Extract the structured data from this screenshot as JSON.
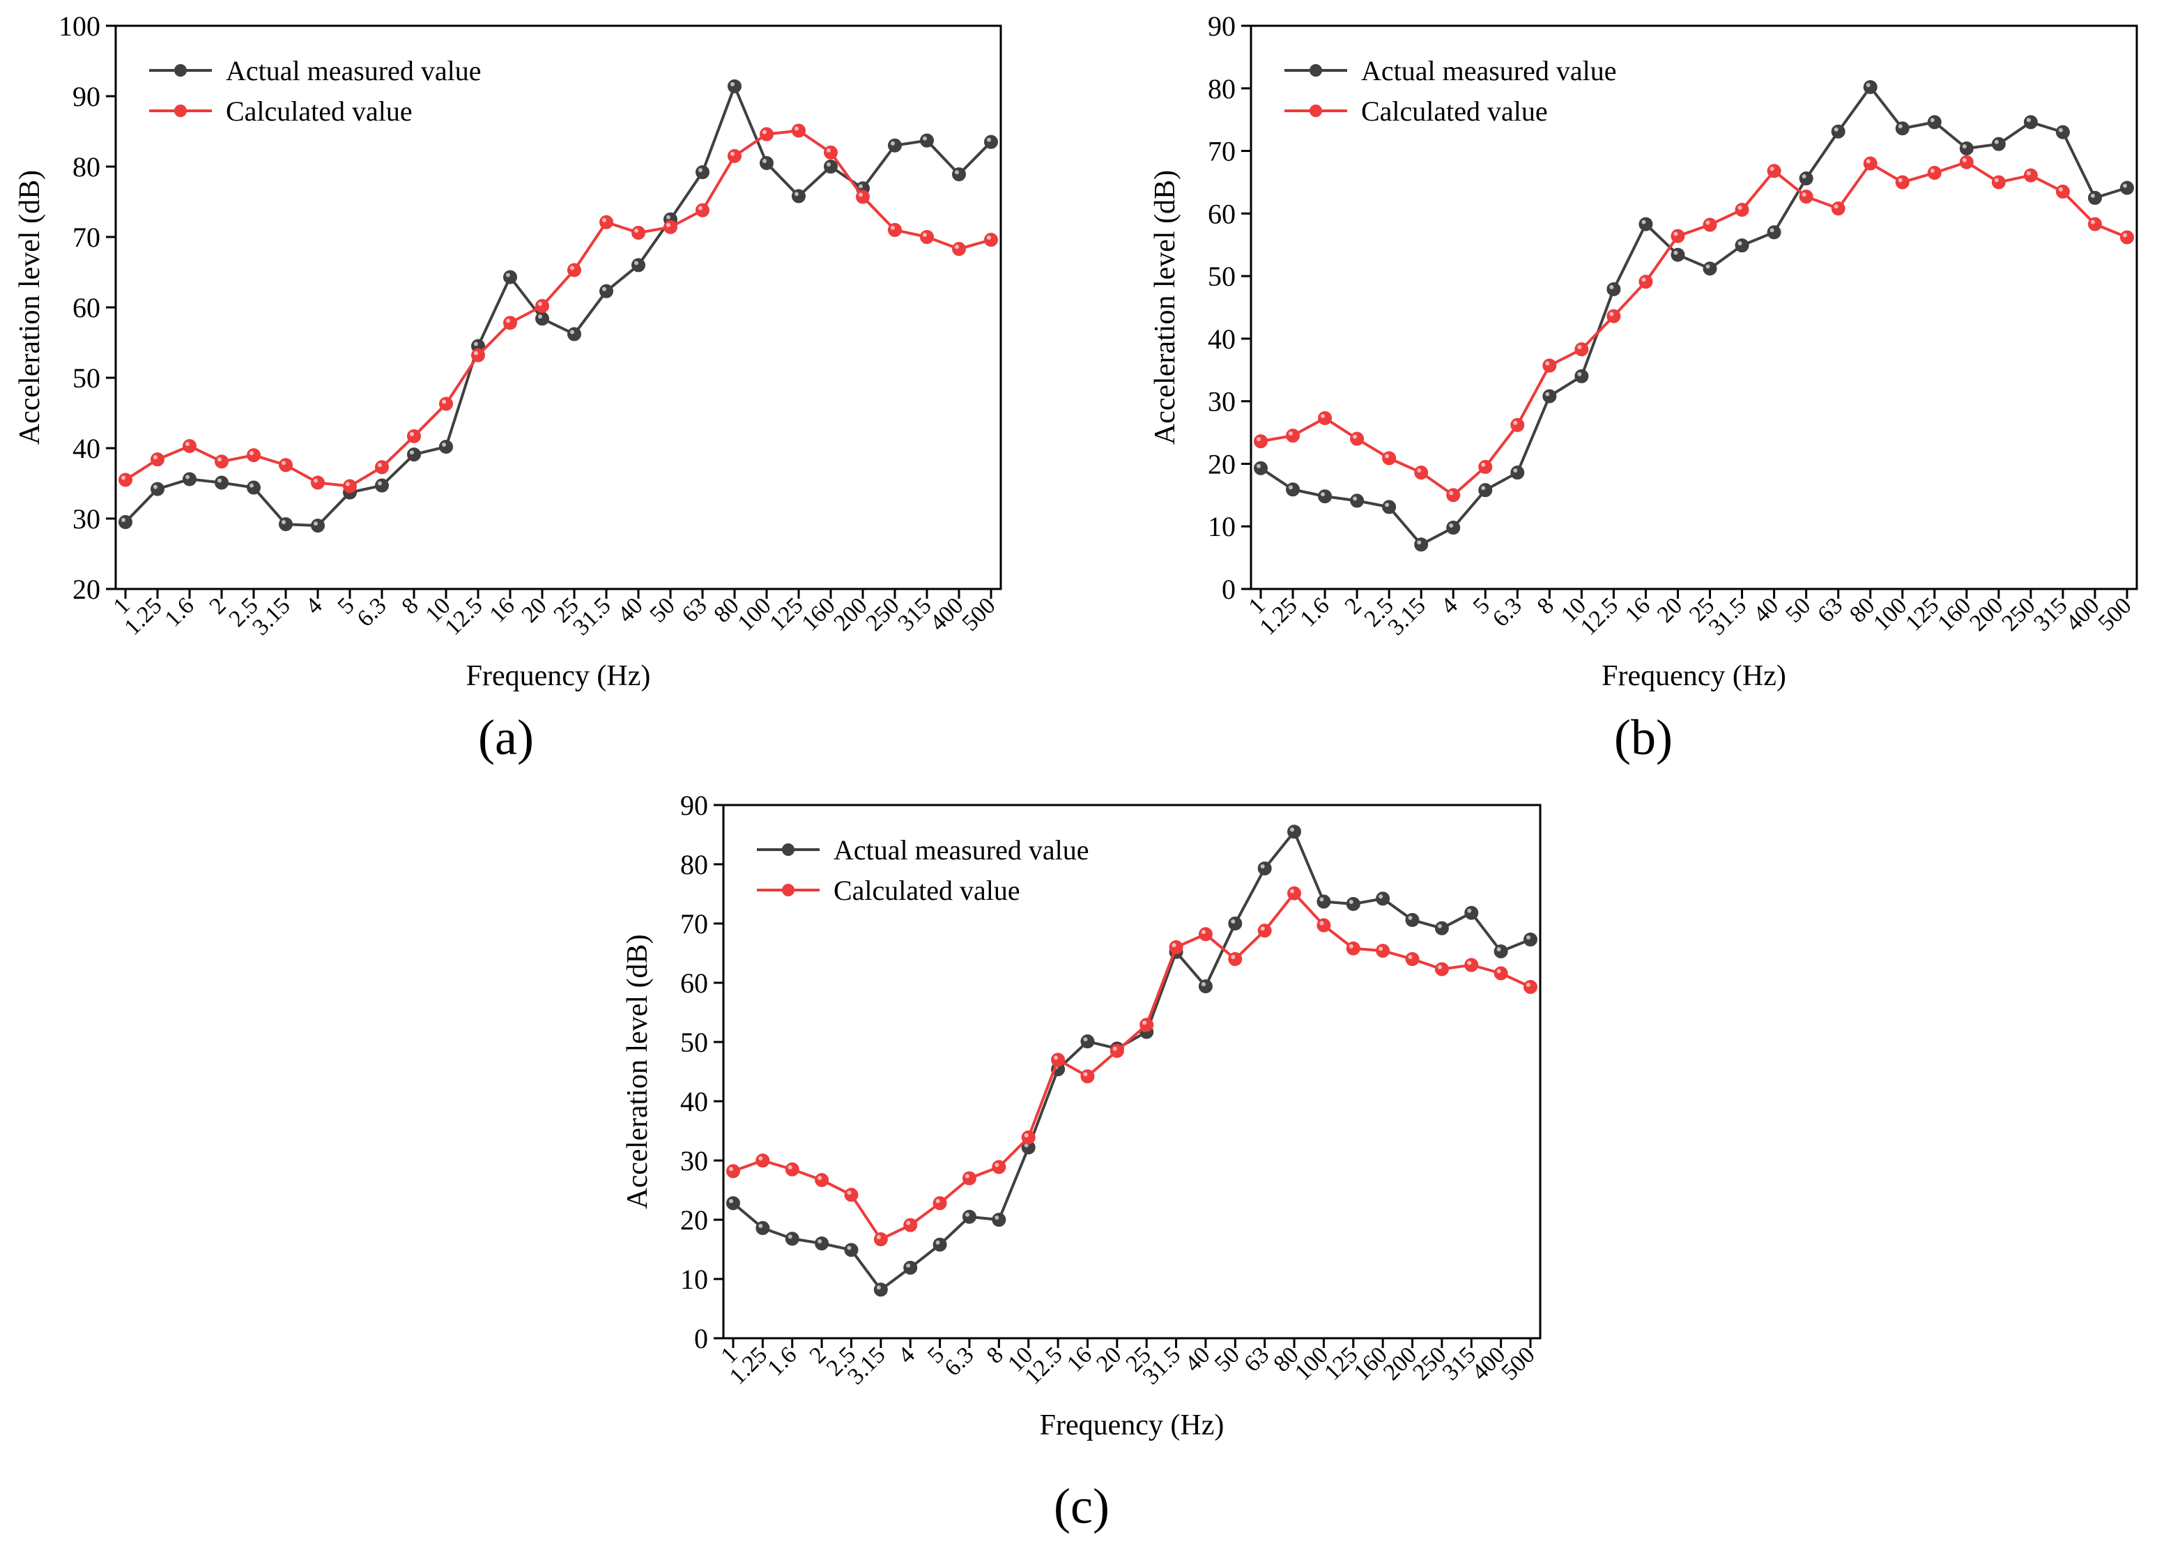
{
  "figure": {
    "colors": {
      "measured": "#404040",
      "calculated": "#ee3b3b",
      "axis": "#000000",
      "background": "#ffffff"
    }
  },
  "chart_data": [
    {
      "id": "a",
      "panel_label": "(a)",
      "type": "line",
      "xlabel": "Frequency (Hz)",
      "ylabel": "Acceleration level (dB)",
      "categories": [
        "1",
        "1.25",
        "1.6",
        "2",
        "2.5",
        "3.15",
        "4",
        "5",
        "6.3",
        "8",
        "10",
        "12.5",
        "16",
        "20",
        "25",
        "31.5",
        "40",
        "50",
        "63",
        "80",
        "100",
        "125",
        "160",
        "200",
        "250",
        "315",
        "400",
        "500"
      ],
      "ylim": [
        20,
        100
      ],
      "yticks": [
        20,
        30,
        40,
        50,
        60,
        70,
        80,
        90,
        100
      ],
      "legend_position": "top-left",
      "series": [
        {
          "name": "Actual measured value",
          "color": "#404040",
          "values": [
            29.5,
            34.2,
            35.6,
            35.1,
            34.4,
            29.2,
            29.0,
            33.7,
            34.7,
            39.1,
            40.2,
            54.5,
            64.3,
            58.4,
            56.2,
            62.3,
            66.0,
            72.5,
            79.2,
            91.4,
            80.5,
            75.8,
            80.0,
            76.9,
            83.0,
            83.7,
            78.9,
            83.5
          ]
        },
        {
          "name": "Calculated value",
          "color": "#ee3b3b",
          "values": [
            35.5,
            38.4,
            40.3,
            38.1,
            39.0,
            37.6,
            35.1,
            34.6,
            37.3,
            41.7,
            46.3,
            53.2,
            57.8,
            60.2,
            65.3,
            72.1,
            70.6,
            71.4,
            73.8,
            81.5,
            84.6,
            85.1,
            82.0,
            75.7,
            71.0,
            70.0,
            68.3,
            69.6
          ]
        }
      ]
    },
    {
      "id": "b",
      "panel_label": "(b)",
      "type": "line",
      "xlabel": "Frequency (Hz)",
      "ylabel": "Acceleration level (dB)",
      "categories": [
        "1",
        "1.25",
        "1.6",
        "2",
        "2.5",
        "3.15",
        "4",
        "5",
        "6.3",
        "8",
        "10",
        "12.5",
        "16",
        "20",
        "25",
        "31.5",
        "40",
        "50",
        "63",
        "80",
        "100",
        "125",
        "160",
        "200",
        "250",
        "315",
        "400",
        "500"
      ],
      "ylim": [
        0,
        90
      ],
      "yticks": [
        0,
        10,
        20,
        30,
        40,
        50,
        60,
        70,
        80,
        90
      ],
      "legend_position": "top-left",
      "series": [
        {
          "name": "Actual measured value",
          "color": "#404040",
          "values": [
            19.3,
            15.9,
            14.8,
            14.1,
            13.1,
            7.1,
            9.8,
            15.8,
            18.6,
            30.8,
            34.0,
            47.9,
            58.3,
            53.4,
            51.2,
            54.9,
            57.0,
            65.6,
            73.1,
            80.2,
            73.6,
            74.6,
            70.4,
            71.1,
            74.6,
            73.0,
            62.5,
            64.1
          ]
        },
        {
          "name": "Calculated value",
          "color": "#ee3b3b",
          "values": [
            23.6,
            24.5,
            27.3,
            24.0,
            20.9,
            18.6,
            15.0,
            19.5,
            26.2,
            35.7,
            38.3,
            43.6,
            49.1,
            56.4,
            58.2,
            60.6,
            66.8,
            62.7,
            60.8,
            68.0,
            65.0,
            66.5,
            68.2,
            65.0,
            66.1,
            63.5,
            58.3,
            56.2
          ]
        }
      ]
    },
    {
      "id": "c",
      "panel_label": "(c)",
      "type": "line",
      "xlabel": "Frequency (Hz)",
      "ylabel": "Acceleration level (dB)",
      "categories": [
        "1",
        "1.25",
        "1.6",
        "2",
        "2.5",
        "3.15",
        "4",
        "5",
        "6.3",
        "8",
        "10",
        "12.5",
        "16",
        "20",
        "25",
        "31.5",
        "40",
        "50",
        "63",
        "80",
        "100",
        "125",
        "160",
        "200",
        "250",
        "315",
        "400",
        "500"
      ],
      "ylim": [
        0,
        90
      ],
      "yticks": [
        0,
        10,
        20,
        30,
        40,
        50,
        60,
        70,
        80,
        90
      ],
      "legend_position": "top-left",
      "series": [
        {
          "name": "Actual measured value",
          "color": "#404040",
          "values": [
            22.8,
            18.6,
            16.8,
            16.0,
            14.9,
            8.2,
            11.9,
            15.8,
            20.5,
            20.0,
            32.2,
            45.4,
            50.1,
            48.9,
            51.7,
            65.2,
            59.4,
            70.0,
            79.3,
            85.5,
            73.7,
            73.3,
            74.2,
            70.6,
            69.2,
            71.8,
            65.3,
            67.3
          ]
        },
        {
          "name": "Calculated value",
          "color": "#ee3b3b",
          "values": [
            28.2,
            30.0,
            28.5,
            26.7,
            24.2,
            16.7,
            19.1,
            22.8,
            27.0,
            28.9,
            33.9,
            47.0,
            44.2,
            48.5,
            52.9,
            66.0,
            68.2,
            64.0,
            68.8,
            75.1,
            69.7,
            65.8,
            65.4,
            64.0,
            62.3,
            63.0,
            61.6,
            59.3
          ]
        }
      ]
    }
  ]
}
